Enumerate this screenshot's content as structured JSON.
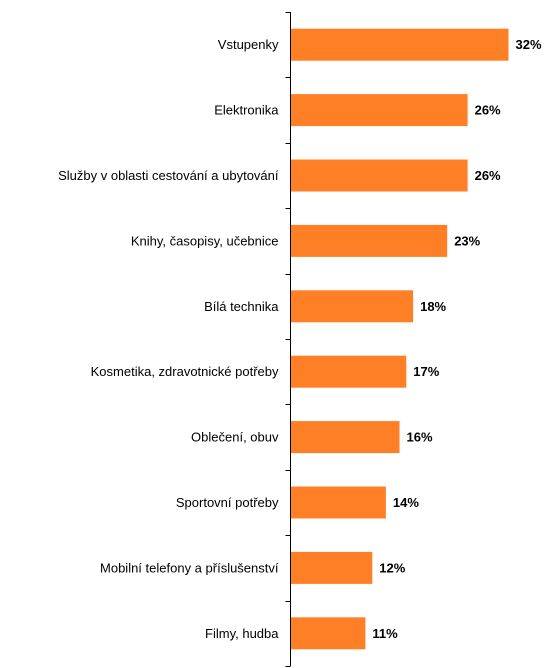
{
  "chart_data": {
    "type": "bar",
    "orientation": "horizontal",
    "categories": [
      "Vstupenky",
      "Elektronika",
      "Služby v oblasti cestování a ubytování",
      "Knihy, časopisy, učebnice",
      "Bílá technika",
      "Kosmetika, zdravotnické potřeby",
      "Oblečení, obuv",
      "Sportovní potřeby",
      "Mobilní telefony a příslušenství",
      "Filmy, hudba"
    ],
    "values": [
      32,
      26,
      26,
      23,
      18,
      17,
      16,
      14,
      12,
      11
    ],
    "value_labels": [
      "32%",
      "26%",
      "26%",
      "23%",
      "18%",
      "17%",
      "16%",
      "14%",
      "12%",
      "11%"
    ],
    "unit": "%",
    "xlim": [
      0,
      35
    ],
    "title": "",
    "xlabel": "",
    "ylabel": "",
    "grid": false,
    "bar_color": "#FF7F27"
  }
}
